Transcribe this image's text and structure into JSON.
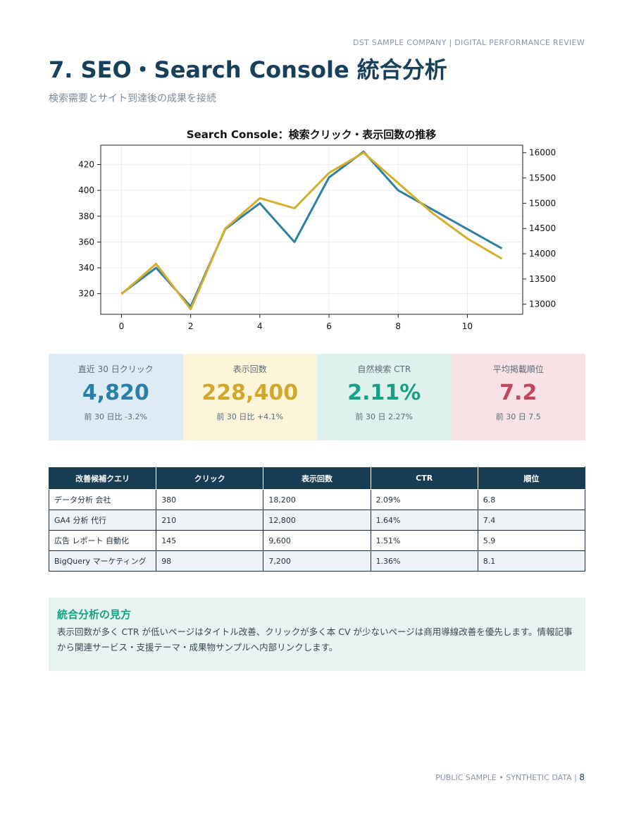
{
  "header": {
    "note": "DST SAMPLE COMPANY | DIGITAL PERFORMANCE REVIEW"
  },
  "title": "7. SEO・Search Console 統合分析",
  "subtitle": "検索需要とサイト到達後の成果を接続",
  "chart_data": {
    "type": "line",
    "title": "Search Console：検索クリック・表示回数の推移",
    "x": [
      0,
      1,
      2,
      3,
      4,
      5,
      6,
      7,
      8,
      9,
      10,
      11
    ],
    "xticks": [
      0,
      2,
      4,
      6,
      8,
      10
    ],
    "xlim": [
      -0.6,
      11.6
    ],
    "series": [
      {
        "axis": "left",
        "color": "#2d7fa3",
        "values": [
          320,
          340,
          310,
          370,
          390,
          360,
          410,
          430,
          400,
          385,
          370,
          355
        ]
      },
      {
        "axis": "right",
        "color": "#d4ae2c",
        "values": [
          13200,
          13800,
          12900,
          14500,
          15100,
          14900,
          15600,
          16000,
          15400,
          14800,
          14300,
          13900
        ]
      }
    ],
    "ylim_left": [
      304,
      435
    ],
    "yticks_left": [
      320,
      340,
      360,
      380,
      400,
      420
    ],
    "ylim_right": [
      12800,
      16150
    ],
    "yticks_right": [
      13000,
      13500,
      14000,
      14500,
      15000,
      15500,
      16000
    ],
    "grid": true
  },
  "kpis": [
    {
      "label": "直近 30 日クリック",
      "value": "4,820",
      "sub": "前 30 日比 -3.2%",
      "bg": "#dcebf4",
      "color": "#2a7fa8"
    },
    {
      "label": "表示回数",
      "value": "228,400",
      "sub": "前 30 日比 +4.1%",
      "bg": "#fdf5d9",
      "color": "#d4a72c"
    },
    {
      "label": "自然検索 CTR",
      "value": "2.11%",
      "sub": "前 30 日 2.27%",
      "bg": "#dff1ec",
      "color": "#17a085"
    },
    {
      "label": "平均掲載順位",
      "value": "7.2",
      "sub": "前 30 日 7.5",
      "bg": "#f8e2e5",
      "color": "#c0485a"
    }
  ],
  "table": {
    "headers": [
      "改善候補クエリ",
      "クリック",
      "表示回数",
      "CTR",
      "順位"
    ],
    "rows": [
      [
        "データ分析 会社",
        "380",
        "18,200",
        "2.09%",
        "6.8"
      ],
      [
        "GA4 分析 代行",
        "210",
        "12,800",
        "1.64%",
        "7.4"
      ],
      [
        "広告 レポート 自動化",
        "145",
        "9,600",
        "1.51%",
        "5.9"
      ],
      [
        "BigQuery マーケティング",
        "98",
        "7,200",
        "1.36%",
        "8.1"
      ]
    ]
  },
  "note": {
    "title": "統合分析の見方",
    "body": "表示回数が多く CTR が低いページはタイトル改善、クリックが多く本 CV が少ないページは商用導線改善を優先します。情報記事から関連サービス・支援テーマ・成果物サンプルへ内部リンクします。"
  },
  "footer": {
    "text": "PUBLIC SAMPLE • SYNTHETIC DATA | ",
    "page": "8"
  }
}
